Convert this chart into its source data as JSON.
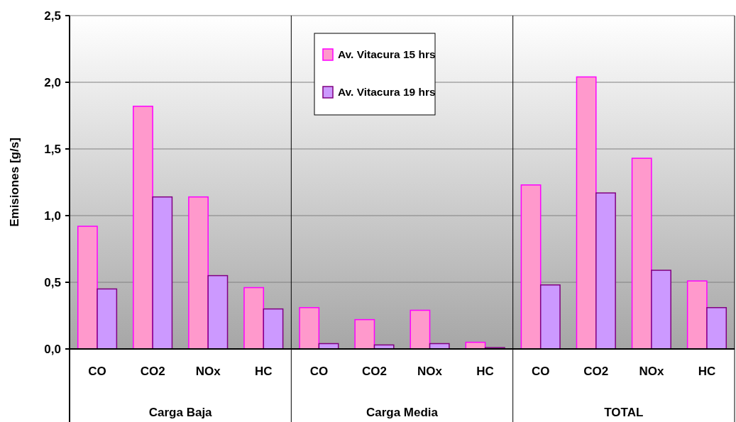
{
  "chart_data": {
    "type": "bar",
    "ylabel": "Emisiones [g/s]",
    "categories": [
      "CO",
      "CO2",
      "NOx",
      "HC",
      "CO",
      "CO2",
      "NOx",
      "HC",
      "CO",
      "CO2",
      "NOx",
      "HC"
    ],
    "annotations": [
      "Carga Baja",
      "Carga Media",
      "TOTAL"
    ],
    "series": [
      {
        "name": "Av. Vitacura 15 hrs",
        "color": "#ff99cc",
        "values": [
          0.92,
          1.82,
          1.14,
          0.46,
          0.31,
          0.22,
          0.29,
          0.05,
          1.23,
          2.04,
          1.43,
          0.51
        ]
      },
      {
        "name": "Av. Vitacura 19 hrs",
        "color": "#cc99ff",
        "values": [
          0.45,
          1.14,
          0.55,
          0.3,
          0.04,
          0.03,
          0.04,
          0.01,
          0.48,
          1.17,
          0.59,
          0.31
        ]
      }
    ],
    "ylim": [
      0,
      2.5
    ],
    "yticks": [
      {
        "value": 0,
        "label": "0,0"
      },
      {
        "value": 0.5,
        "label": "0,5"
      },
      {
        "value": 1,
        "label": "1,0"
      },
      {
        "value": 1.5,
        "label": "1,5"
      },
      {
        "value": 2,
        "label": "2,0"
      },
      {
        "value": 2.5,
        "label": "2,5"
      }
    ],
    "grid": "y",
    "legend": "top"
  }
}
